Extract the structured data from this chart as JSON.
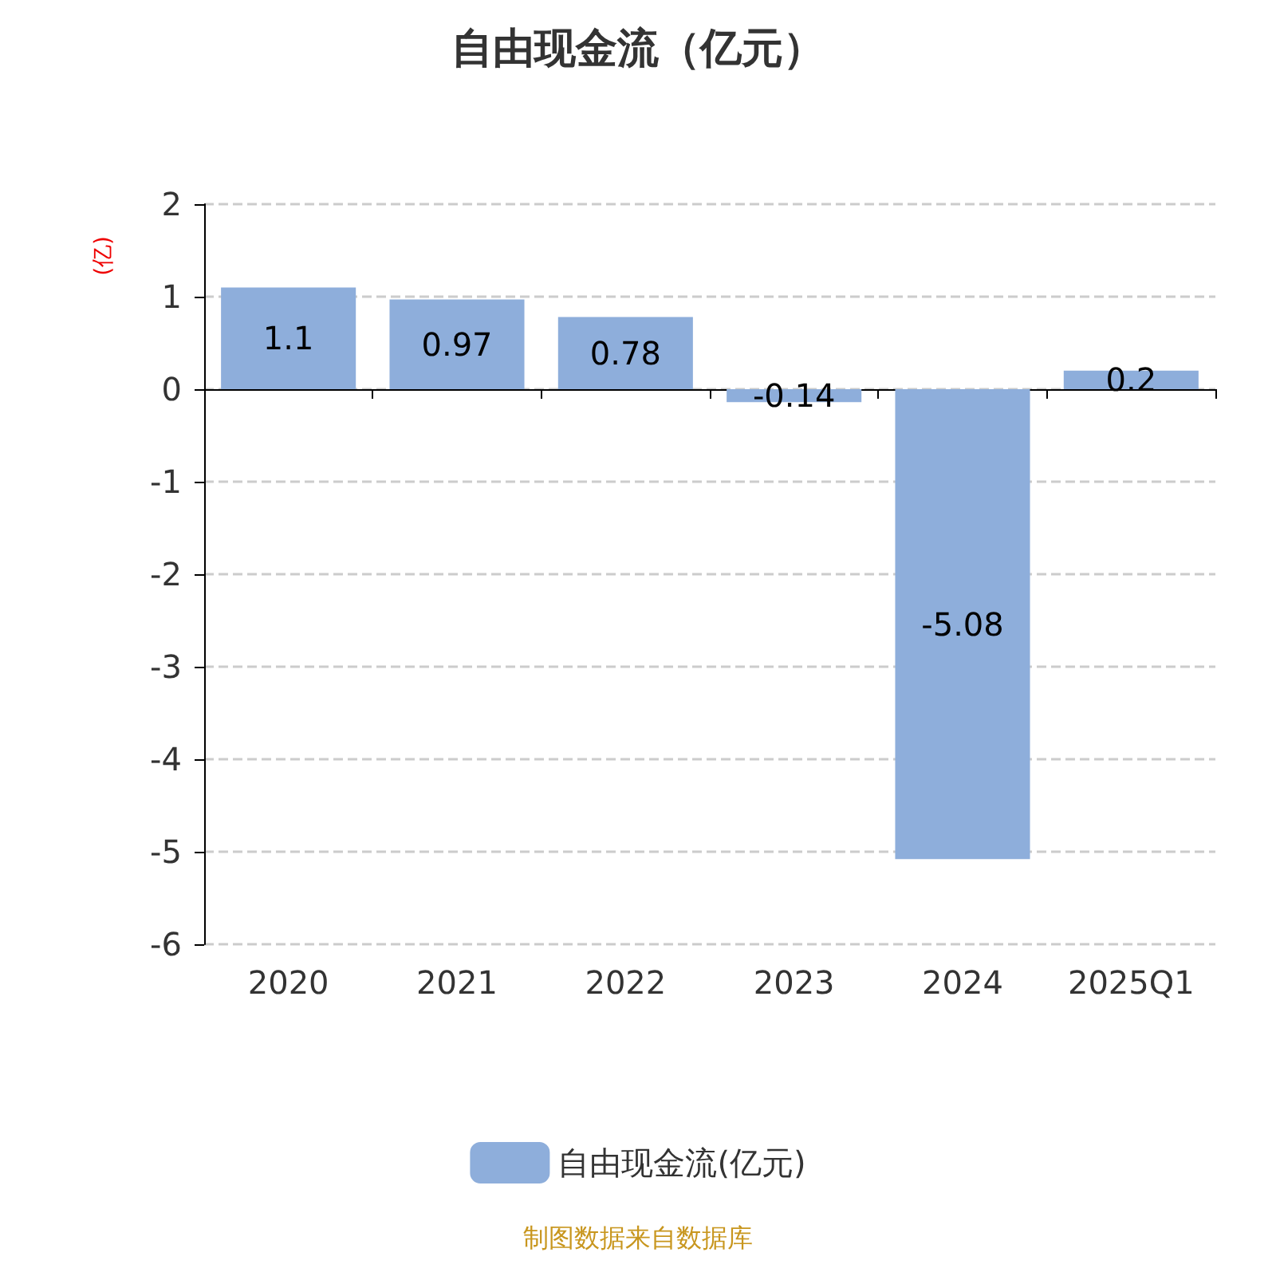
{
  "chart_data": {
    "type": "bar",
    "title": "自由现金流（亿元）",
    "ylabel": "(亿)",
    "categories": [
      "2020",
      "2021",
      "2022",
      "2023",
      "2024",
      "2025Q1"
    ],
    "series": [
      {
        "name": "自由现金流(亿元)",
        "color": "#8eaedb",
        "values": [
          1.1,
          0.97,
          0.78,
          -0.14,
          -5.08,
          0.2
        ]
      }
    ],
    "ylim": [
      -6,
      2
    ],
    "yticks": [
      -6,
      -5,
      -4,
      -3,
      -2,
      -1,
      0,
      1,
      2
    ],
    "grid": "y",
    "legend": "bottom",
    "data_labels": true,
    "annotations": [
      "制图数据来自数据库"
    ]
  }
}
